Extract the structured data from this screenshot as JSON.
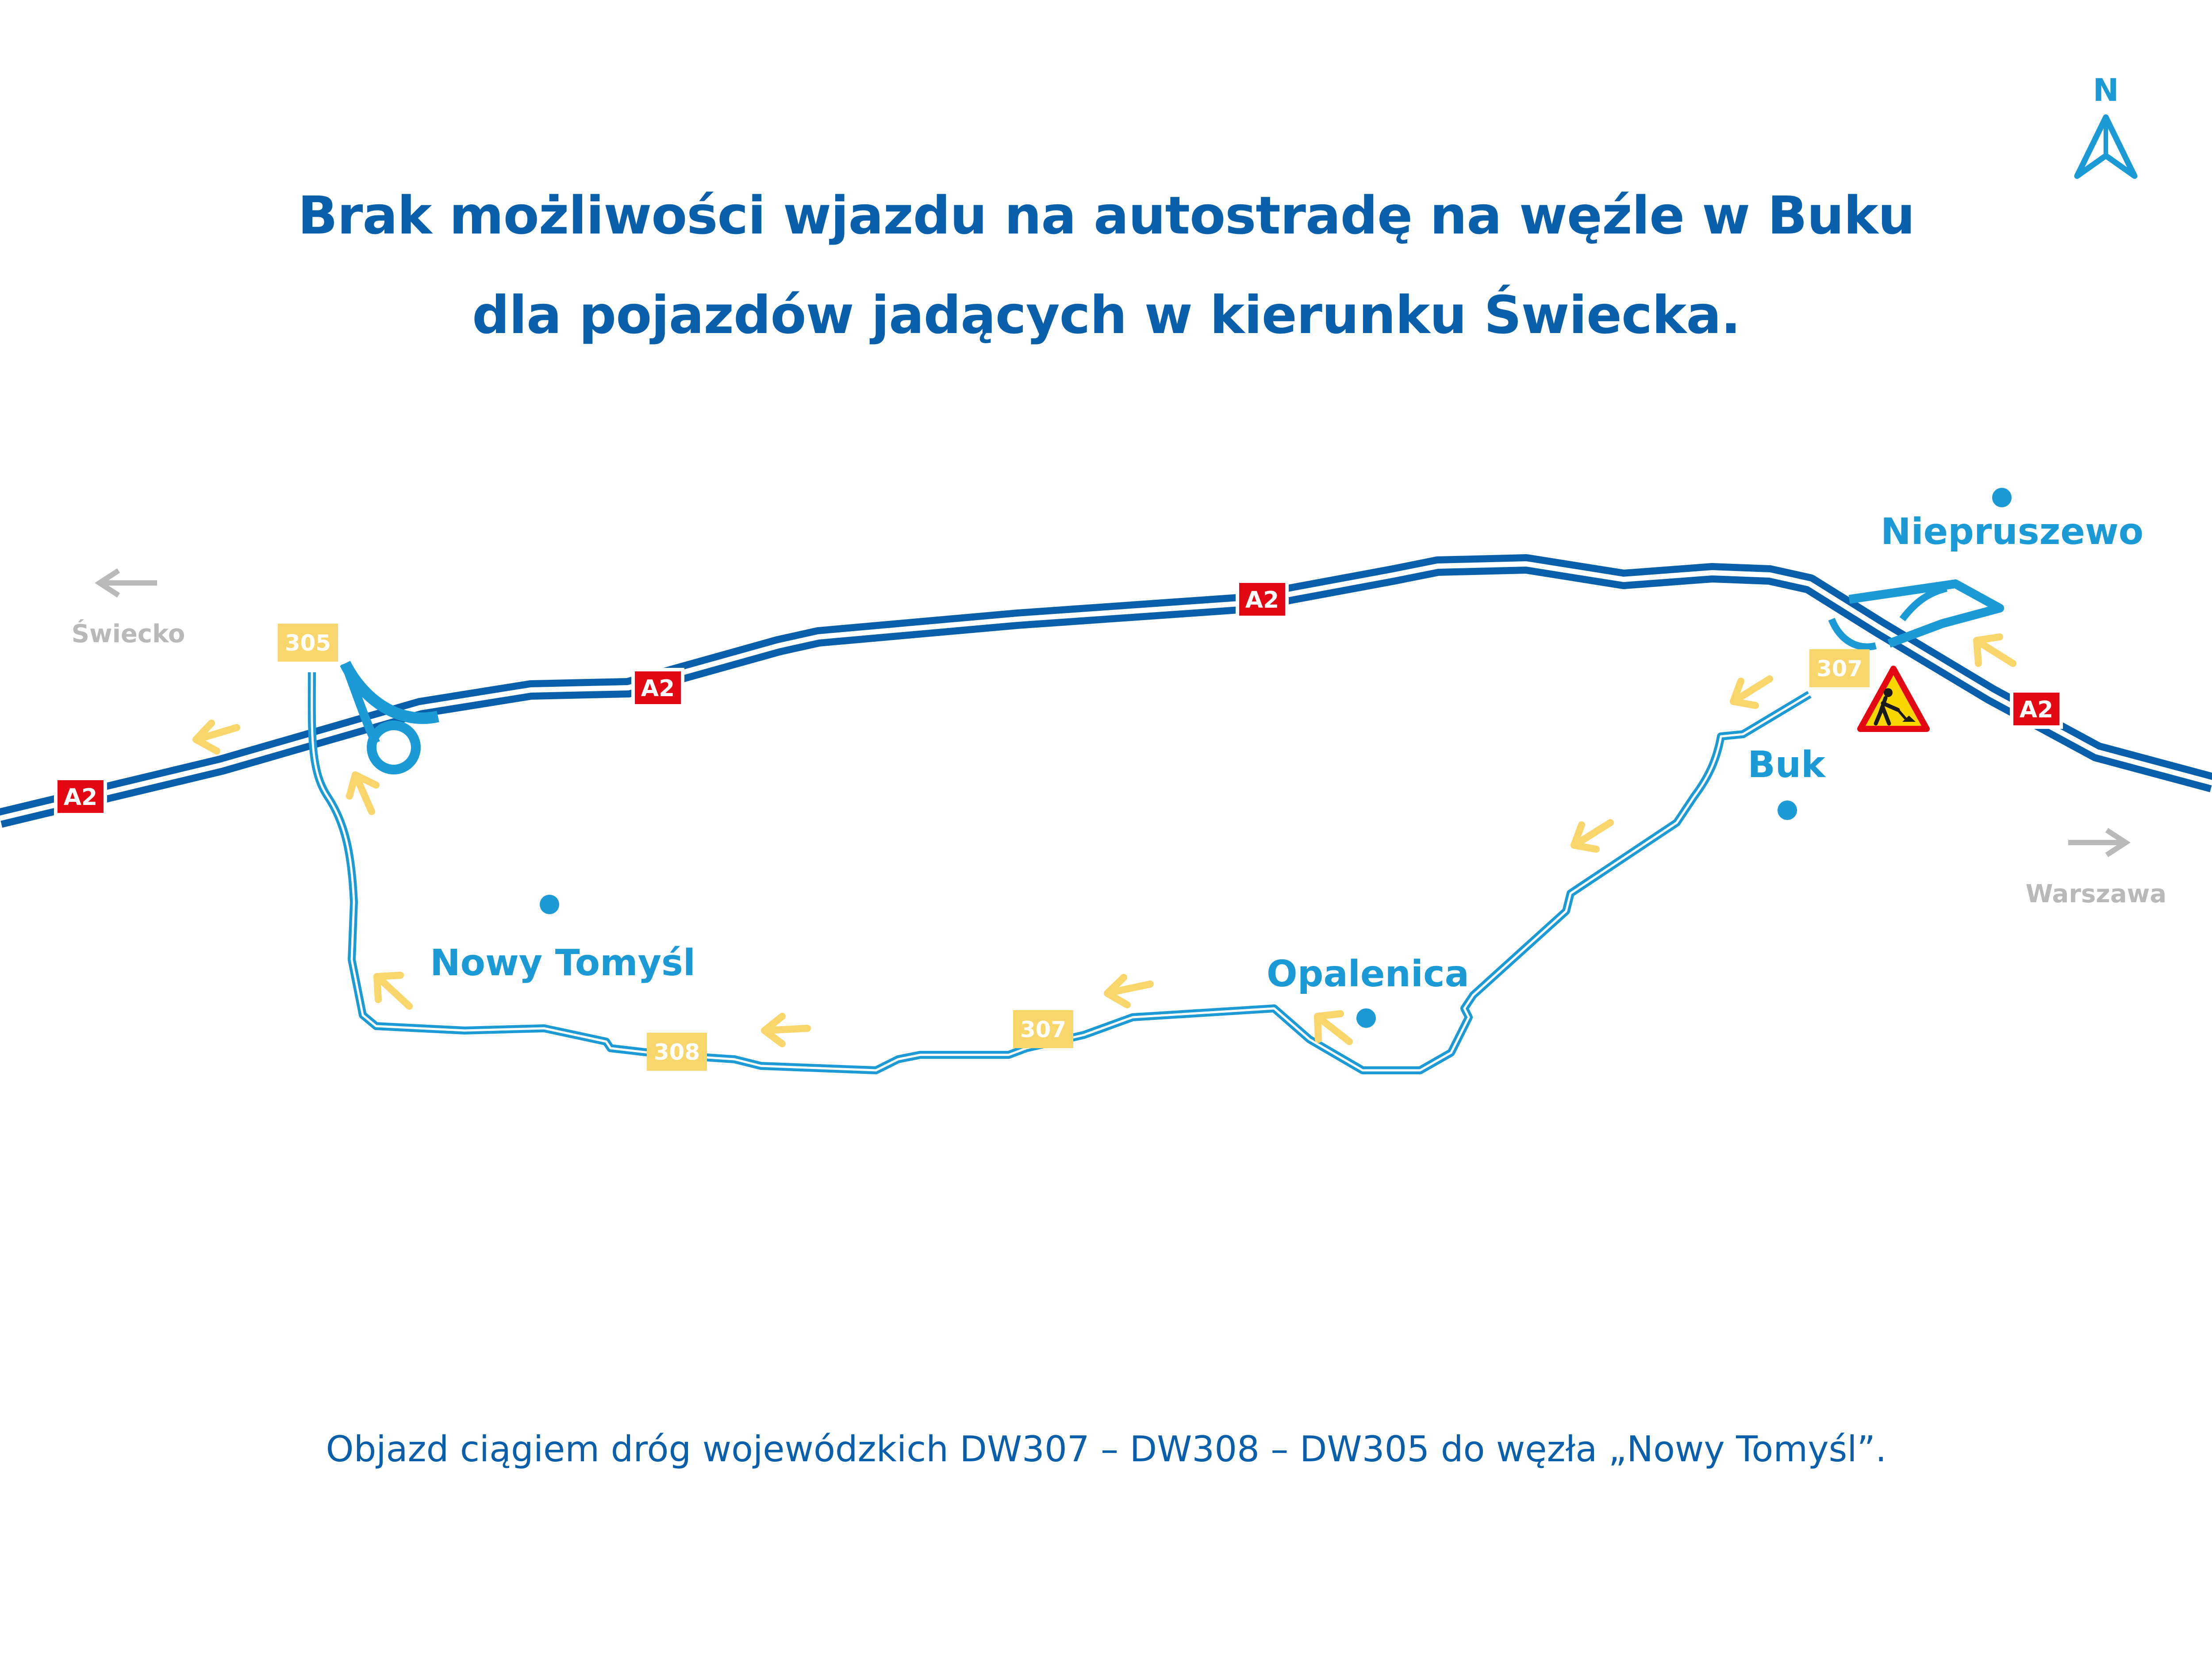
{
  "title": {
    "line1": "Brak możliwości wjazdu na autostradę na węźle w Buku",
    "line2": "dla pojazdów jadących w kierunku Świecka."
  },
  "footer": "Objazd ciągiem dróg wojewódzkich DW307 – DW308 – DW305 do węzła „Nowy Tomyśl”.",
  "compass": {
    "label": "N"
  },
  "directions": {
    "west": "Świecko",
    "east": "Warszawa"
  },
  "towns": {
    "niepruszewo": "Niepruszewo",
    "buk": "Buk",
    "nowy_tomysl": "Nowy Tomyśl",
    "opalenica": "Opalenica"
  },
  "road_labels": {
    "a2": "A2",
    "dw305": "305",
    "dw307": "307",
    "dw308": "308"
  },
  "colors": {
    "motorway": "#0a5fab",
    "detour": "#1b9ad6",
    "a2_badge": "#e30613",
    "dw_badge": "#f9d66b",
    "arrows": "#f9d66b",
    "direction_grey": "#b9b9b9",
    "roadworks_sign": "#f9d600"
  },
  "icons": {
    "roadworks": "roadworks-warning-icon",
    "north": "north-arrow-icon"
  }
}
